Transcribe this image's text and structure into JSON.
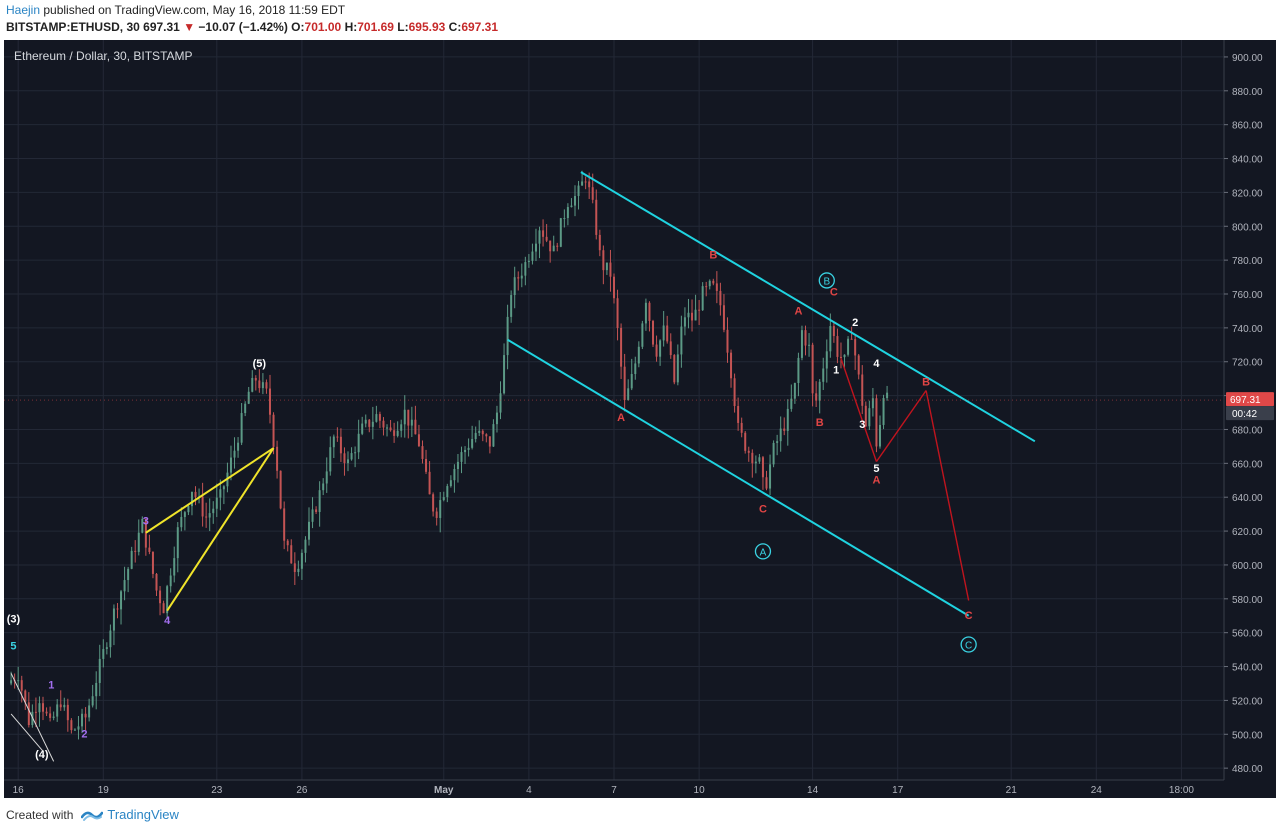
{
  "header": {
    "author": "Haejin",
    "published_text": " published on TradingView.com, May 16, 2018 11:59 EDT",
    "symbol": "BITSTAMP:ETHUSD, 30",
    "last": "697.31",
    "change_arrow": "▼",
    "change": "−10.07 (−1.42%)",
    "open_label": "O:",
    "open": "701.00",
    "high_label": "H:",
    "high": "701.69",
    "low_label": "L:",
    "low": "695.93",
    "close_label": "C:",
    "close": "697.31"
  },
  "footer": {
    "created_with": "Created with",
    "brand": "TradingView",
    "logo_icon": "tradingview-logo-icon"
  },
  "colors": {
    "background": "#131722",
    "grid": "#232836",
    "channel": "#1fd3e0",
    "triangle": "#f0e42a",
    "projection": "#c0141e",
    "wave_red": "#e04545",
    "wave_purple": "#a36ff0",
    "wave_white": "#ffffff",
    "wave_cyan": "#3ad3e3",
    "candle_up": "#5c9a86",
    "candle_down": "#c45454",
    "price_tag": "#e04848"
  },
  "chart_data": {
    "type": "candlestick",
    "title": "Ethereum / Dollar, 30, BITSTAMP",
    "xlabel": "",
    "ylabel": "",
    "x_ticks": [
      "16",
      "19",
      "23",
      "26",
      "May",
      "4",
      "7",
      "10",
      "14",
      "17",
      "21",
      "24",
      "18:00"
    ],
    "x_tick_dates": [
      "2018-04-16",
      "2018-04-19",
      "2018-04-23",
      "2018-04-26",
      "2018-05-01",
      "2018-05-04",
      "2018-05-07",
      "2018-05-10",
      "2018-05-14",
      "2018-05-17",
      "2018-05-21",
      "2018-05-24",
      "2018-05-27"
    ],
    "y_ticks": [
      480,
      500,
      520,
      540,
      560,
      580,
      600,
      620,
      640,
      660,
      680,
      700,
      720,
      740,
      760,
      780,
      800,
      820,
      840,
      860,
      880,
      900
    ],
    "y_tick_labels": [
      "480.00",
      "500.00",
      "520.00",
      "540.00",
      "560.00",
      "580.00",
      "600.00",
      "620.00",
      "640.00",
      "660.00",
      "680.00",
      "700.00",
      "720.00",
      "740.00",
      "760.00",
      "780.00",
      "800.00",
      "820.00",
      "840.00",
      "860.00",
      "880.00",
      "900.00"
    ],
    "ylim": [
      473,
      910
    ],
    "grid": true,
    "last_price": "697.31",
    "countdown": "00:42",
    "price_path": [
      [
        "2018-04-15 18:00",
        530
      ],
      [
        "2018-04-16 03:00",
        536
      ],
      [
        "2018-04-16 12:00",
        508
      ],
      [
        "2018-04-16 21:00",
        522
      ],
      [
        "2018-04-17 06:00",
        505
      ],
      [
        "2018-04-17 15:00",
        520
      ],
      [
        "2018-04-18 00:00",
        501
      ],
      [
        "2018-04-18 12:00",
        510
      ],
      [
        "2018-04-19 00:00",
        540
      ],
      [
        "2018-04-19 12:00",
        572
      ],
      [
        "2018-04-20 00:00",
        598
      ],
      [
        "2018-04-20 12:00",
        624
      ],
      [
        "2018-04-21 00:00",
        585
      ],
      [
        "2018-04-21 06:00",
        575
      ],
      [
        "2018-04-21 18:00",
        620
      ],
      [
        "2018-04-22 06:00",
        645
      ],
      [
        "2018-04-22 18:00",
        628
      ],
      [
        "2018-04-23 06:00",
        640
      ],
      [
        "2018-04-23 18:00",
        668
      ],
      [
        "2018-04-24 06:00",
        702
      ],
      [
        "2018-04-24 12:00",
        710
      ],
      [
        "2018-04-24 22:00",
        700
      ],
      [
        "2018-04-25 06:00",
        658
      ],
      [
        "2018-04-25 12:00",
        612
      ],
      [
        "2018-04-25 22:00",
        598
      ],
      [
        "2018-04-26 06:00",
        615
      ],
      [
        "2018-04-26 18:00",
        642
      ],
      [
        "2018-04-27 06:00",
        675
      ],
      [
        "2018-04-27 18:00",
        660
      ],
      [
        "2018-04-28 06:00",
        680
      ],
      [
        "2018-04-28 18:00",
        688
      ],
      [
        "2018-04-29 06:00",
        678
      ],
      [
        "2018-04-29 18:00",
        690
      ],
      [
        "2018-04-30 06:00",
        672
      ],
      [
        "2018-04-30 15:00",
        640
      ],
      [
        "2018-04-30 20:00",
        630
      ],
      [
        "2018-05-01 06:00",
        650
      ],
      [
        "2018-05-01 18:00",
        665
      ],
      [
        "2018-05-02 06:00",
        678
      ],
      [
        "2018-05-02 18:00",
        672
      ],
      [
        "2018-05-03 00:00",
        690
      ],
      [
        "2018-05-03 06:00",
        722
      ],
      [
        "2018-05-03 12:00",
        762
      ],
      [
        "2018-05-04 00:00",
        778
      ],
      [
        "2018-05-04 12:00",
        800
      ],
      [
        "2018-05-05 00:00",
        785
      ],
      [
        "2018-05-05 12:00",
        815
      ],
      [
        "2018-05-05 20:00",
        818
      ],
      [
        "2018-05-06 03:00",
        830
      ],
      [
        "2018-05-06 10:00",
        808
      ],
      [
        "2018-05-06 16:00",
        778
      ],
      [
        "2018-05-07 00:00",
        772
      ],
      [
        "2018-05-07 06:00",
        738
      ],
      [
        "2018-05-07 12:00",
        695
      ],
      [
        "2018-05-07 20:00",
        715
      ],
      [
        "2018-05-08 06:00",
        758
      ],
      [
        "2018-05-08 14:00",
        725
      ],
      [
        "2018-05-08 22:00",
        740
      ],
      [
        "2018-05-09 06:00",
        708
      ],
      [
        "2018-05-09 14:00",
        748
      ],
      [
        "2018-05-09 22:00",
        745
      ],
      [
        "2018-05-10 06:00",
        760
      ],
      [
        "2018-05-10 14:00",
        765
      ],
      [
        "2018-05-10 22:00",
        752
      ],
      [
        "2018-05-11 06:00",
        715
      ],
      [
        "2018-05-11 12:00",
        680
      ],
      [
        "2018-05-11 20:00",
        668
      ],
      [
        "2018-05-12 06:00",
        660
      ],
      [
        "2018-05-12 10:00",
        643
      ],
      [
        "2018-05-12 18:00",
        668
      ],
      [
        "2018-05-13 06:00",
        688
      ],
      [
        "2018-05-13 12:00",
        705
      ],
      [
        "2018-05-13 18:00",
        738
      ],
      [
        "2018-05-14 00:00",
        728
      ],
      [
        "2018-05-14 04:00",
        690
      ],
      [
        "2018-05-14 12:00",
        718
      ],
      [
        "2018-05-14 18:00",
        742
      ],
      [
        "2018-05-15 00:00",
        726
      ],
      [
        "2018-05-15 06:00",
        720
      ],
      [
        "2018-05-15 12:00",
        738
      ],
      [
        "2018-05-15 18:00",
        710
      ],
      [
        "2018-05-16 00:00",
        682
      ],
      [
        "2018-05-16 06:00",
        698
      ],
      [
        "2018-05-16 10:00",
        664
      ],
      [
        "2018-05-16 14:00",
        706
      ],
      [
        "2018-05-16 17:00",
        697.31
      ]
    ],
    "channel_upper": [
      [
        "2018-05-05 20:00",
        832
      ],
      [
        "2018-05-21 20:00",
        673
      ]
    ],
    "channel_lower": [
      [
        "2018-05-03 06:00",
        733
      ],
      [
        "2018-05-19 12:00",
        570
      ]
    ],
    "triangle_lines": [
      [
        [
          "2018-04-20 12:00",
          619
        ],
        [
          "2018-04-25 00:00",
          669
        ]
      ],
      [
        [
          "2018-04-21 06:00",
          573
        ],
        [
          "2018-04-25 00:00",
          669
        ]
      ]
    ],
    "left_wedge_lines": [
      [
        [
          "2018-04-15 18:00",
          536
        ],
        [
          "2018-04-17 06:00",
          484
        ]
      ],
      [
        [
          "2018-04-15 18:00",
          512
        ],
        [
          "2018-04-16 21:00",
          490
        ]
      ]
    ],
    "projection_path": [
      [
        "2018-05-15 00:00",
        722
      ],
      [
        "2018-05-16 06:00",
        661
      ],
      [
        "2018-05-18 00:00",
        703
      ],
      [
        "2018-05-19 12:00",
        579
      ]
    ],
    "wave_labels": [
      {
        "text": "(3)",
        "x": "2018-04-15 20:00",
        "y": 566,
        "color": "#ffffff"
      },
      {
        "text": "5",
        "x": "2018-04-15 20:00",
        "y": 550,
        "color": "#3ad3e3"
      },
      {
        "text": "1",
        "x": "2018-04-17 04:00",
        "y": 527,
        "color": "#a36ff0"
      },
      {
        "text": "2",
        "x": "2018-04-18 08:00",
        "y": 498,
        "color": "#a36ff0"
      },
      {
        "text": "(4)",
        "x": "2018-04-16 20:00",
        "y": 486,
        "color": "#ffffff"
      },
      {
        "text": "3",
        "x": "2018-04-20 12:00",
        "y": 624,
        "color": "#a36ff0"
      },
      {
        "text": "4",
        "x": "2018-04-21 06:00",
        "y": 565,
        "color": "#a36ff0"
      },
      {
        "text": "(5)",
        "x": "2018-04-24 12:00",
        "y": 717,
        "color": "#ffffff"
      },
      {
        "text": "A",
        "x": "2018-05-07 06:00",
        "y": 685,
        "color": "#e04545"
      },
      {
        "text": "B",
        "x": "2018-05-10 12:00",
        "y": 781,
        "color": "#e04545"
      },
      {
        "text": "C",
        "x": "2018-05-12 06:00",
        "y": 631,
        "color": "#e04545"
      },
      {
        "text": "A",
        "x": "2018-05-13 12:00",
        "y": 748,
        "color": "#e04545"
      },
      {
        "text": "B",
        "x": "2018-05-14 06:00",
        "y": 682,
        "color": "#e04545"
      },
      {
        "text": "C",
        "x": "2018-05-14 18:00",
        "y": 759,
        "color": "#e04545"
      },
      {
        "text": "1",
        "x": "2018-05-14 20:00",
        "y": 713,
        "color": "#ffffff"
      },
      {
        "text": "2",
        "x": "2018-05-15 12:00",
        "y": 741,
        "color": "#ffffff"
      },
      {
        "text": "3",
        "x": "2018-05-15 18:00",
        "y": 681,
        "color": "#ffffff"
      },
      {
        "text": "4",
        "x": "2018-05-16 06:00",
        "y": 717,
        "color": "#ffffff"
      },
      {
        "text": "5",
        "x": "2018-05-16 06:00",
        "y": 655,
        "color": "#ffffff"
      },
      {
        "text": "A",
        "x": "2018-05-16 06:00",
        "y": 648,
        "color": "#e04545"
      },
      {
        "text": "B",
        "x": "2018-05-18 00:00",
        "y": 706,
        "color": "#e04545"
      },
      {
        "text": "C",
        "x": "2018-05-19 12:00",
        "y": 568,
        "color": "#e04545"
      }
    ],
    "circled_labels": [
      {
        "text": "B",
        "x": "2018-05-14 12:00",
        "y": 768,
        "color": "#3ad3e3"
      },
      {
        "text": "A",
        "x": "2018-05-12 06:00",
        "y": 608,
        "color": "#3ad3e3"
      },
      {
        "text": "C",
        "x": "2018-05-19 12:00",
        "y": 553,
        "color": "#3ad3e3"
      }
    ]
  }
}
